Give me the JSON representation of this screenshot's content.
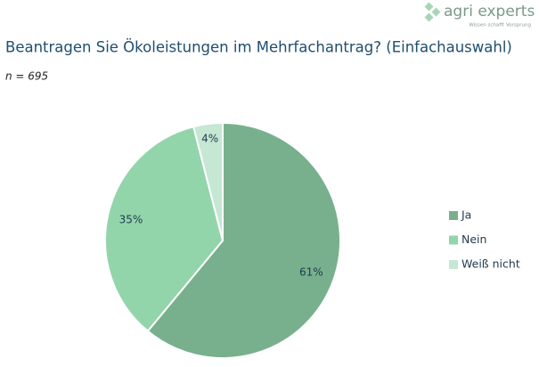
{
  "logo": {
    "name": "agri experts",
    "tagline": "Wissen schafft Vorsprung"
  },
  "chart_data": {
    "type": "pie",
    "title": "Beantragen Sie Ökoleistungen im Mehrfachantrag? (Einfachauswahl)",
    "subtitle": "n = 695",
    "categories": [
      "Ja",
      "Nein",
      "Weiß nicht"
    ],
    "values": [
      61,
      35,
      4
    ],
    "value_labels": [
      "61%",
      "35%",
      "4%"
    ],
    "colors": [
      "#78b08d",
      "#93d5ab",
      "#c5e7d3"
    ],
    "legend": "right"
  }
}
